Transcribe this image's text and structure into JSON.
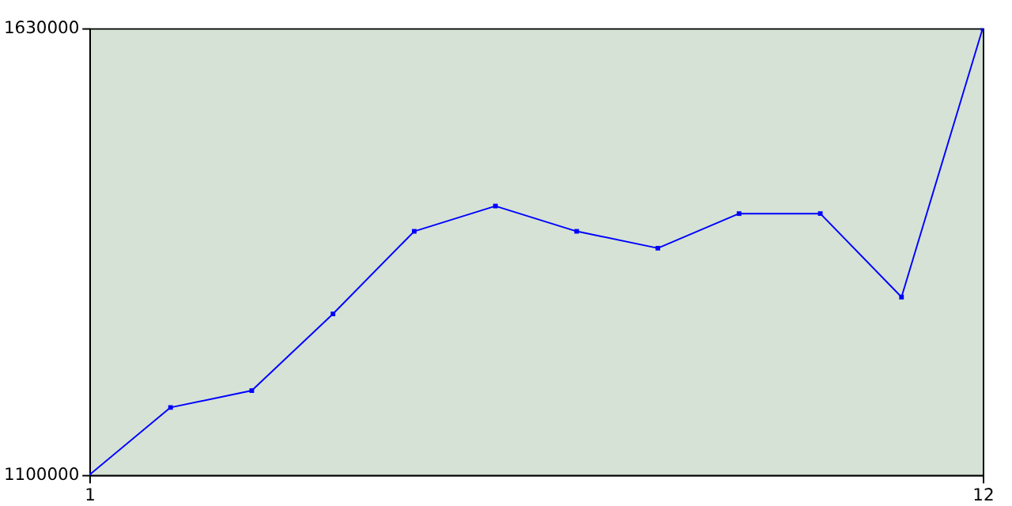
{
  "chart_data": {
    "type": "line",
    "x": [
      1,
      2,
      3,
      4,
      5,
      6,
      7,
      8,
      9,
      10,
      11,
      12
    ],
    "series": [
      {
        "color": "#0000ff",
        "values": [
          1100000,
          1180000,
          1200000,
          1291000,
          1389000,
          1419000,
          1389000,
          1369000,
          1410000,
          1410000,
          1311000,
          1630000
        ]
      }
    ],
    "xlim": [
      1,
      12
    ],
    "xticks": [
      1,
      12
    ],
    "ylim": [
      1100000,
      1630000
    ],
    "yticks": [
      1100000,
      1630000
    ],
    "grid": false,
    "legend": false,
    "marker": "square",
    "line_style": "solid"
  }
}
